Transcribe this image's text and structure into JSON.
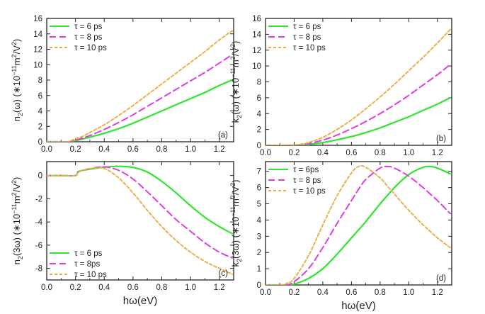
{
  "colors": {
    "tau6": "#2ee62e",
    "tau8": "#e03ce0",
    "tau10": "#e8b24a",
    "axis": "#222222"
  },
  "chart_data": [
    {
      "id": "a",
      "type": "line",
      "panel_label": "(a)",
      "ylabel_main": "n",
      "ylabel_sub": "2",
      "ylabel_rest": "(ω) (∗10",
      "ylabel_exp": "−11",
      "ylabel_units": "m",
      "ylabel_units_exp": "2",
      "ylabel_units_tail": "/V",
      "ylabel_units_tail_exp": "2",
      "ylabel_close": ")",
      "xlabel": "",
      "xlim": [
        0,
        1.3
      ],
      "ylim": [
        0,
        16
      ],
      "xticks": [
        0.0,
        0.2,
        0.4,
        0.6,
        0.8,
        1.0,
        1.2
      ],
      "xtick_labels": [
        "0.0",
        "0.2",
        "0.4",
        "0.6",
        "0.8",
        "1.0",
        "1.2"
      ],
      "yticks": [
        0,
        2,
        4,
        6,
        8,
        10,
        12,
        14,
        16
      ],
      "ytick_labels": [
        "0",
        "2",
        "4",
        "6",
        "8",
        "10",
        "12",
        "14",
        "16"
      ],
      "legend": [
        "τ = 6 ps",
        "τ = 8 ps",
        "τ = 10 ps"
      ],
      "legend_position": "top-left",
      "label_position": "bottom-right",
      "x": [
        0,
        0.1,
        0.15,
        0.2,
        0.25,
        0.3,
        0.4,
        0.5,
        0.6,
        0.7,
        0.8,
        0.9,
        1.0,
        1.1,
        1.2,
        1.29
      ],
      "series": [
        {
          "name": "τ = 6 ps",
          "style": "solid",
          "values": [
            0,
            0,
            0,
            0.15,
            0.35,
            0.6,
            1.1,
            1.7,
            2.4,
            3.2,
            4.0,
            4.8,
            5.6,
            6.4,
            7.3,
            8.0
          ]
        },
        {
          "name": "τ = 8 ps",
          "style": "dashed",
          "values": [
            0,
            0,
            0,
            0.2,
            0.5,
            0.8,
            1.6,
            2.5,
            3.5,
            4.6,
            5.7,
            6.8,
            7.9,
            9.0,
            10.2,
            11.3
          ]
        },
        {
          "name": "τ = 10 ps",
          "style": "dotted",
          "values": [
            0,
            0,
            0,
            0.4,
            0.7,
            1.2,
            2.2,
            3.4,
            4.7,
            6.1,
            7.5,
            8.9,
            10.3,
            11.7,
            13.2,
            14.4
          ]
        }
      ]
    },
    {
      "id": "b",
      "type": "line",
      "panel_label": "(b)",
      "ylabel_main": "k",
      "ylabel_sub": "2",
      "ylabel_rest": "(ω) (∗10",
      "ylabel_exp": "−11",
      "ylabel_units": "m",
      "ylabel_units_exp": "2",
      "ylabel_units_tail": "/V",
      "ylabel_units_tail_exp": "2",
      "ylabel_close": ")",
      "xlabel": "",
      "xlim": [
        0,
        1.3
      ],
      "ylim": [
        0,
        16
      ],
      "xticks": [
        0.0,
        0.2,
        0.4,
        0.6,
        0.8,
        1.0,
        1.2
      ],
      "xtick_labels": [
        "0.0",
        "0.2",
        "0.4",
        "0.6",
        "0.8",
        "1.0",
        "1.2"
      ],
      "yticks": [
        0,
        2,
        4,
        6,
        8,
        10,
        12,
        14,
        16
      ],
      "ytick_labels": [
        "0",
        "2",
        "4",
        "6",
        "8",
        "10",
        "12",
        "14",
        "16"
      ],
      "legend": [
        "τ = 6 ps",
        "τ = 8 ps",
        "τ = 10 ps"
      ],
      "legend_position": "top-left",
      "label_position": "bottom-right",
      "x": [
        0,
        0.1,
        0.2,
        0.25,
        0.3,
        0.4,
        0.5,
        0.6,
        0.7,
        0.8,
        0.9,
        1.0,
        1.1,
        1.2,
        1.29
      ],
      "series": [
        {
          "name": "τ = 6 ps",
          "style": "solid",
          "values": [
            0,
            0,
            0,
            0.02,
            0.1,
            0.35,
            0.7,
            1.1,
            1.6,
            2.2,
            2.9,
            3.6,
            4.4,
            5.2,
            6.0
          ]
        },
        {
          "name": "τ = 8 ps",
          "style": "dashed",
          "values": [
            0,
            0,
            0,
            0.05,
            0.2,
            0.65,
            1.3,
            2.1,
            3.0,
            4.0,
            5.1,
            6.3,
            7.6,
            8.9,
            10.2
          ]
        },
        {
          "name": "τ = 10 ps",
          "style": "dotted",
          "values": [
            0,
            0,
            0.05,
            0.15,
            0.35,
            1.0,
            2.0,
            3.2,
            4.6,
            6.1,
            7.7,
            9.4,
            11.1,
            12.9,
            14.6
          ]
        }
      ]
    },
    {
      "id": "c",
      "type": "line",
      "panel_label": "(c)",
      "ylabel_main": "n",
      "ylabel_sub": "2",
      "ylabel_rest": "(3ω) (∗10",
      "ylabel_exp": "−11",
      "ylabel_units": "m",
      "ylabel_units_exp": "2",
      "ylabel_units_tail": "/V",
      "ylabel_units_tail_exp": "2",
      "ylabel_close": ")",
      "xlabel_main": "h",
      "xlabel_rest": "ω(eV)",
      "xlim": [
        0,
        1.3
      ],
      "ylim": [
        -9,
        1.2
      ],
      "xticks": [
        0.0,
        0.2,
        0.4,
        0.6,
        0.8,
        1.0,
        1.2
      ],
      "xtick_labels": [
        "0.0",
        "0.2",
        "0.4",
        "0.6",
        "0.8",
        "1.0",
        "1.2"
      ],
      "yticks": [
        -8,
        -6,
        -4,
        -2,
        0
      ],
      "ytick_labels": [
        "-8",
        "-6",
        "-4",
        "-2",
        "0"
      ],
      "legend": [
        "τ = 6 ps",
        "τ = 8ps",
        "τ = 10 ps"
      ],
      "legend_position": "bottom-left",
      "label_position": "bottom-right",
      "x": [
        0,
        0.1,
        0.2,
        0.22,
        0.3,
        0.4,
        0.5,
        0.6,
        0.7,
        0.8,
        0.9,
        1.0,
        1.1,
        1.2,
        1.29
      ],
      "series": [
        {
          "name": "τ = 6 ps",
          "style": "solid",
          "values": [
            0,
            0,
            0,
            0.35,
            0.55,
            0.72,
            0.8,
            0.7,
            0.3,
            -0.5,
            -1.5,
            -2.6,
            -3.6,
            -4.4,
            -5.0
          ]
        },
        {
          "name": "τ = 8ps",
          "style": "dashed",
          "values": [
            0,
            0,
            0,
            0.3,
            0.6,
            0.75,
            0.45,
            -0.3,
            -1.4,
            -2.6,
            -3.8,
            -4.8,
            -5.8,
            -6.6,
            -7.1
          ]
        },
        {
          "name": "τ = 10 ps",
          "style": "dotted",
          "values": [
            0,
            0,
            0,
            0.3,
            0.6,
            0.6,
            -0.2,
            -1.5,
            -3.0,
            -4.4,
            -5.6,
            -6.6,
            -7.4,
            -8.0,
            -8.5
          ]
        }
      ]
    },
    {
      "id": "d",
      "type": "line",
      "panel_label": "(d)",
      "ylabel_main": "k",
      "ylabel_sub": "2",
      "ylabel_rest": "(3ω) (∗10",
      "ylabel_exp": "−11",
      "ylabel_units": "m",
      "ylabel_units_exp": "2",
      "ylabel_units_tail": "/V",
      "ylabel_units_tail_exp": "2",
      "ylabel_close": ")",
      "xlabel_main": "h",
      "xlabel_rest": "ω(eV)",
      "xlim": [
        0,
        1.3
      ],
      "ylim": [
        0,
        7.6
      ],
      "xticks": [
        0.0,
        0.2,
        0.4,
        0.6,
        0.8,
        1.0,
        1.2
      ],
      "xtick_labels": [
        "0.0",
        "0.2",
        "0.4",
        "0.6",
        "0.8",
        "1.0",
        "1.2"
      ],
      "yticks": [
        0,
        1,
        2,
        3,
        4,
        5,
        6,
        7
      ],
      "ytick_labels": [
        "0",
        "1",
        "2",
        "3",
        "4",
        "5",
        "6",
        "7"
      ],
      "legend": [
        "τ = 6ps",
        "τ = 8 ps",
        "τ = 10 ps"
      ],
      "legend_position": "top-left",
      "label_position": "bottom-right",
      "x": [
        0,
        0.1,
        0.15,
        0.2,
        0.3,
        0.4,
        0.5,
        0.6,
        0.65,
        0.7,
        0.8,
        0.85,
        0.9,
        1.0,
        1.1,
        1.15,
        1.2,
        1.29
      ],
      "series": [
        {
          "name": "τ = 6ps",
          "style": "solid",
          "values": [
            0,
            0,
            0,
            0.05,
            0.4,
            1.0,
            1.9,
            2.9,
            3.4,
            3.9,
            5.0,
            5.5,
            6.0,
            6.8,
            7.25,
            7.3,
            7.2,
            6.85
          ]
        },
        {
          "name": "τ = 8 ps",
          "style": "dashed",
          "values": [
            0,
            0,
            0,
            0.2,
            1.0,
            2.3,
            3.8,
            5.2,
            5.9,
            6.5,
            7.2,
            7.3,
            7.2,
            6.7,
            6.0,
            5.6,
            5.2,
            4.4
          ]
        },
        {
          "name": "τ = 10 ps",
          "style": "dotted",
          "values": [
            0,
            0,
            0.1,
            0.4,
            1.8,
            3.7,
            5.5,
            6.9,
            7.3,
            7.25,
            6.6,
            6.1,
            5.6,
            4.6,
            3.7,
            3.3,
            2.9,
            2.3
          ]
        }
      ]
    }
  ]
}
